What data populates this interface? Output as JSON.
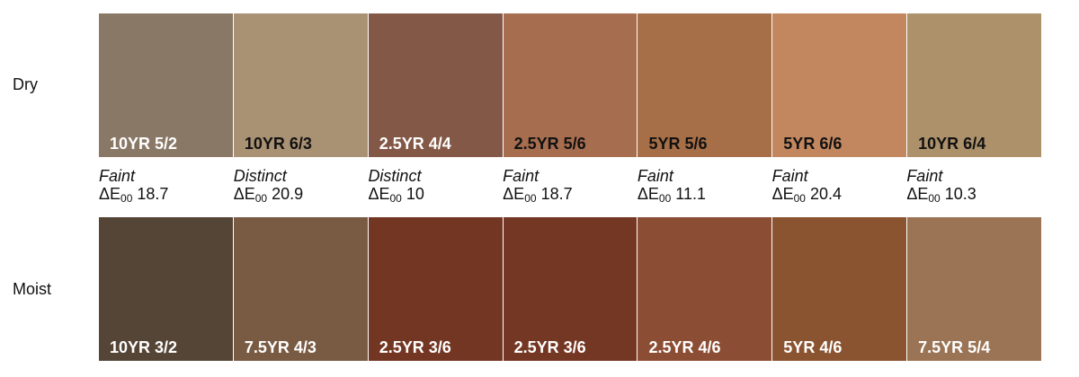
{
  "labels": {
    "dry": "Dry",
    "moist": "Moist"
  },
  "delta_symbol": "ΔE",
  "delta_subscript": "00",
  "dry": [
    {
      "code": "10YR 5/2",
      "color": "#8a7867",
      "text_color": "#ffffff"
    },
    {
      "code": "10YR 6/3",
      "color": "#a99173",
      "text_color": "#111111"
    },
    {
      "code": "2.5YR 4/4",
      "color": "#835846",
      "text_color": "#ffffff"
    },
    {
      "code": "2.5YR 5/6",
      "color": "#a76d4f",
      "text_color": "#111111"
    },
    {
      "code": "5YR 5/6",
      "color": "#a66f47",
      "text_color": "#111111"
    },
    {
      "code": "5YR 6/6",
      "color": "#c2875f",
      "text_color": "#111111"
    },
    {
      "code": "10YR 6/4",
      "color": "#ac916a",
      "text_color": "#111111"
    }
  ],
  "differences": [
    {
      "class": "Faint",
      "value": "18.7"
    },
    {
      "class": "Distinct",
      "value": "20.9"
    },
    {
      "class": "Distinct",
      "value": "10"
    },
    {
      "class": "Faint",
      "value": "18.7"
    },
    {
      "class": "Faint",
      "value": "11.1"
    },
    {
      "class": "Faint",
      "value": "20.4"
    },
    {
      "class": "Faint",
      "value": "10.3"
    }
  ],
  "moist": [
    {
      "code": "10YR 3/2",
      "color": "#554536",
      "text_color": "#ffffff"
    },
    {
      "code": "7.5YR 4/3",
      "color": "#795a43",
      "text_color": "#ffffff"
    },
    {
      "code": "2.5YR 3/6",
      "color": "#733622",
      "text_color": "#ffffff"
    },
    {
      "code": "2.5YR 3/6",
      "color": "#743723",
      "text_color": "#ffffff"
    },
    {
      "code": "2.5YR 4/6",
      "color": "#8b4d33",
      "text_color": "#ffffff"
    },
    {
      "code": "5YR 4/6",
      "color": "#8a5430",
      "text_color": "#ffffff"
    },
    {
      "code": "7.5YR 5/4",
      "color": "#9a7455",
      "text_color": "#ffffff"
    }
  ]
}
